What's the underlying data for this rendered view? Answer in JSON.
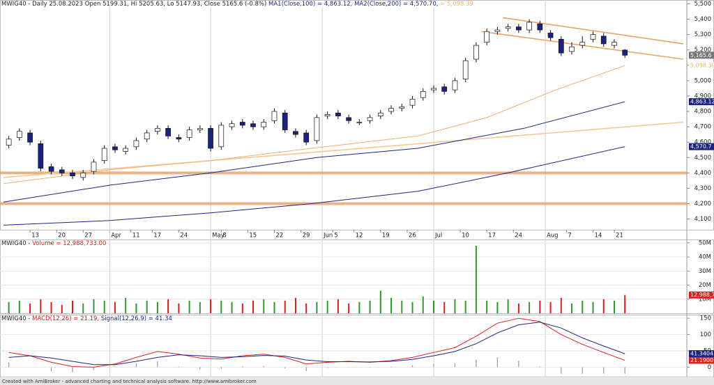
{
  "chart_data": [
    {
      "type": "candlestick",
      "title": "MWIG40 - Daily 25.08.2023 Open 5199.31, Hi 5205.63, Lo 5147.93, Close 5165.6 (-0.8%)",
      "x": [
        1,
        3,
        5,
        7,
        9,
        11,
        13,
        15,
        17,
        19,
        21,
        23,
        25,
        27,
        29,
        31,
        33,
        35,
        37,
        39,
        41,
        43,
        45,
        47,
        49,
        51,
        53,
        55,
        57,
        59,
        61,
        63,
        65,
        67,
        69,
        71,
        73,
        75,
        77,
        79,
        81,
        83,
        85,
        87,
        89,
        91,
        93,
        95,
        97,
        99,
        101,
        103,
        105,
        107,
        109,
        111,
        113,
        115,
        117
      ],
      "open": [
        4580,
        4630,
        4660,
        4590,
        4440,
        4420,
        4400,
        4370,
        4410,
        4480,
        4570,
        4540,
        4570,
        4620,
        4670,
        4690,
        4630,
        4630,
        4680,
        4690,
        4570,
        4700,
        4730,
        4720,
        4700,
        4740,
        4790,
        4670,
        4660,
        4610,
        4770,
        4790,
        4760,
        4730,
        4740,
        4770,
        4800,
        4820,
        4840,
        4890,
        4940,
        4960,
        4940,
        5010,
        5140,
        5250,
        5320,
        5340,
        5350,
        5330,
        5370,
        5310,
        5270,
        5190,
        5230,
        5270,
        5290,
        5230,
        5199.31
      ],
      "high": [
        4640,
        4690,
        4680,
        4610,
        4460,
        4440,
        4420,
        4420,
        4490,
        4580,
        4590,
        4580,
        4630,
        4680,
        4710,
        4710,
        4650,
        4700,
        4710,
        4710,
        4730,
        4740,
        4750,
        4740,
        4750,
        4820,
        4810,
        4690,
        4680,
        4780,
        4800,
        4810,
        4780,
        4750,
        4780,
        4810,
        4840,
        4850,
        4900,
        4950,
        4970,
        4980,
        5020,
        5150,
        5250,
        5340,
        5350,
        5370,
        5370,
        5400,
        5390,
        5330,
        5290,
        5250,
        5290,
        5320,
        5310,
        5270,
        5205.63
      ],
      "low": [
        4560,
        4610,
        4580,
        4410,
        4390,
        4380,
        4360,
        4350,
        4390,
        4460,
        4530,
        4520,
        4550,
        4600,
        4650,
        4620,
        4600,
        4610,
        4660,
        4540,
        4550,
        4680,
        4690,
        4680,
        4680,
        4720,
        4660,
        4630,
        4580,
        4590,
        4750,
        4750,
        4720,
        4710,
        4720,
        4750,
        4780,
        4800,
        4820,
        4870,
        4920,
        4910,
        4920,
        4990,
        5120,
        5230,
        5300,
        5320,
        5310,
        5310,
        5310,
        5260,
        5160,
        5170,
        5210,
        5250,
        5220,
        5210,
        5147.93
      ],
      "close": [
        4620,
        4670,
        4600,
        4430,
        4410,
        4400,
        4380,
        4400,
        4470,
        4560,
        4550,
        4560,
        4610,
        4660,
        4690,
        4640,
        4620,
        4680,
        4690,
        4560,
        4710,
        4720,
        4710,
        4700,
        4730,
        4800,
        4680,
        4650,
        4600,
        4760,
        4780,
        4770,
        4740,
        4730,
        4760,
        4790,
        4820,
        4830,
        4880,
        4930,
        4950,
        4930,
        5000,
        5130,
        5230,
        5320,
        5330,
        5350,
        5330,
        5380,
        5330,
        5280,
        5180,
        5220,
        5250,
        5300,
        5240,
        5250,
        5165.6
      ],
      "up_color": "#ffffff",
      "down_color": "#1a2380",
      "last_label": "5,165.6",
      "series": [
        {
          "name": "MA1(Close,100) = 4,863.12,",
          "color": "#1a2380",
          "x": [
            0,
            20,
            39,
            59,
            78,
            98,
            117
          ],
          "values": [
            4210,
            4320,
            4400,
            4500,
            4560,
            4690,
            4863.12
          ],
          "last_label": "4,863.12"
        },
        {
          "name": "MA2(Close,200) = 4,570.70,",
          "color": "#1a2380",
          "x": [
            0,
            20,
            39,
            58,
            78,
            95,
            117
          ],
          "values": [
            4060,
            4090,
            4140,
            4200,
            4280,
            4400,
            4570.7
          ],
          "last_label": "4,570.7"
        },
        {
          "name": "= 5,098.39",
          "color": "#f0b070",
          "x": [
            0,
            20,
            39,
            58,
            78,
            91,
            104,
            117
          ],
          "values": [
            4330,
            4420,
            4480,
            4560,
            4640,
            4760,
            4940,
            5098.39
          ],
          "last_label": "5,098.39"
        }
      ],
      "overlays": [
        {
          "color": "#f5c896",
          "x": [
            0,
            128
          ],
          "values": [
            4370,
            4730
          ]
        },
        {
          "color": "#e9a468",
          "x": [
            94,
            128
          ],
          "values": [
            5410,
            5240
          ]
        },
        {
          "color": "#e9a468",
          "x": [
            90,
            128
          ],
          "values": [
            5320,
            5140
          ]
        }
      ],
      "hlines": [
        4400,
        4200
      ],
      "hline_color": "#e09a60",
      "xlim": [
        0,
        128
      ],
      "xticks": [
        {
          "value": 5,
          "label": "13"
        },
        {
          "value": 10,
          "label": "20"
        },
        {
          "value": 15,
          "label": "27"
        },
        {
          "value": 20,
          "label": "Apr"
        },
        {
          "value": 24,
          "label": "11"
        },
        {
          "value": 28,
          "label": "17"
        },
        {
          "value": 33,
          "label": "24"
        },
        {
          "value": 39,
          "label": "May"
        },
        {
          "value": 41,
          "label": "8"
        },
        {
          "value": 46,
          "label": "15"
        },
        {
          "value": 51,
          "label": "22"
        },
        {
          "value": 56,
          "label": "29"
        },
        {
          "value": 60,
          "label": "Jun"
        },
        {
          "value": 62,
          "label": "5"
        },
        {
          "value": 66,
          "label": "12"
        },
        {
          "value": 71,
          "label": "19"
        },
        {
          "value": 76,
          "label": "26"
        },
        {
          "value": 81,
          "label": "Jul"
        },
        {
          "value": 86,
          "label": "10"
        },
        {
          "value": 91,
          "label": "17"
        },
        {
          "value": 96,
          "label": "24"
        },
        {
          "value": 102,
          "label": "Aug"
        },
        {
          "value": 106,
          "label": "7"
        },
        {
          "value": 111,
          "label": "14"
        },
        {
          "value": 115,
          "label": "21"
        }
      ],
      "ylim": [
        4030,
        5525
      ],
      "yticks": [
        {
          "value": 5500,
          "label": "5,500"
        },
        {
          "value": 5400,
          "label": "5,400"
        },
        {
          "value": 5300,
          "label": "5,300"
        },
        {
          "value": 5200,
          "label": "5,200"
        },
        {
          "value": 5100,
          "label": "5,100"
        },
        {
          "value": 5000,
          "label": "5,000"
        },
        {
          "value": 4900,
          "label": "4,900"
        },
        {
          "value": 4800,
          "label": "4,800"
        },
        {
          "value": 4700,
          "label": "4,700"
        },
        {
          "value": 4600,
          "label": "4,600"
        },
        {
          "value": 4500,
          "label": "4,500"
        },
        {
          "value": 4400,
          "label": "4,400"
        },
        {
          "value": 4300,
          "label": "4,300"
        },
        {
          "value": 4200,
          "label": "4,200"
        },
        {
          "value": 4100,
          "label": "4,100"
        }
      ]
    },
    {
      "type": "bar",
      "title": "MWIG40 -",
      "name": "Volume = 12,988,733.00",
      "name_color": "#d62020",
      "x": [
        1,
        3,
        5,
        7,
        9,
        11,
        13,
        15,
        17,
        19,
        21,
        23,
        25,
        27,
        29,
        31,
        33,
        35,
        37,
        39,
        41,
        43,
        45,
        47,
        49,
        51,
        53,
        55,
        57,
        59,
        61,
        63,
        65,
        67,
        69,
        71,
        73,
        75,
        77,
        79,
        81,
        83,
        85,
        87,
        89,
        91,
        93,
        95,
        97,
        99,
        101,
        103,
        105,
        107,
        109,
        111,
        113,
        115,
        117
      ],
      "values": [
        8000000,
        9000000,
        7000000,
        10000000,
        8000000,
        6000000,
        9000000,
        7000000,
        10000000,
        9000000,
        8000000,
        11000000,
        7000000,
        9000000,
        8000000,
        10000000,
        7000000,
        9000000,
        8000000,
        10000000,
        9000000,
        8000000,
        7000000,
        9000000,
        10000000,
        8000000,
        9000000,
        11000000,
        7000000,
        8000000,
        9000000,
        10000000,
        7000000,
        8000000,
        9000000,
        16000000,
        11000000,
        9000000,
        8000000,
        12000000,
        9000000,
        8000000,
        10000000,
        9000000,
        48000000,
        9000000,
        8000000,
        10000000,
        7000000,
        8000000,
        9000000,
        8000000,
        11000000,
        7000000,
        9000000,
        8000000,
        10000000,
        9000000,
        12988733
      ],
      "up_color": "#2e9a2e",
      "down_color": "#d62020",
      "last_label": "12,988,7",
      "ylim": [
        0,
        52400000
      ],
      "yticks": [
        {
          "value": 50000000,
          "label": "50M"
        },
        {
          "value": 40000000,
          "label": "40M"
        },
        {
          "value": 30000000,
          "label": "30M"
        },
        {
          "value": 20000000,
          "label": "20M"
        },
        {
          "value": 10000000,
          "label": "10M"
        }
      ]
    },
    {
      "type": "macd",
      "title": "MWIG40 -",
      "x": [
        1,
        5,
        9,
        13,
        17,
        21,
        25,
        29,
        33,
        37,
        41,
        45,
        49,
        53,
        57,
        61,
        65,
        69,
        73,
        77,
        81,
        85,
        89,
        93,
        97,
        101,
        105,
        109,
        113,
        117
      ],
      "series": [
        {
          "name": "MACD(12,26) = 21.19,",
          "color": "#d62020",
          "values": [
            45,
            35,
            15,
            2,
            0,
            10,
            30,
            48,
            40,
            28,
            25,
            35,
            40,
            30,
            10,
            15,
            18,
            15,
            20,
            30,
            45,
            60,
            95,
            135,
            150,
            140,
            100,
            70,
            45,
            21.19
          ],
          "last_label": "21.1900"
        },
        {
          "name": "Signal(12,26,9) = 41.34",
          "color": "#1a2380",
          "values": [
            30,
            35,
            28,
            18,
            8,
            8,
            18,
            30,
            38,
            35,
            30,
            32,
            36,
            34,
            22,
            17,
            17,
            16,
            18,
            24,
            35,
            48,
            72,
            105,
            130,
            138,
            120,
            90,
            65,
            41.34
          ],
          "last_label": "41.3404"
        }
      ],
      "histogram": {
        "color": "#9a9a9a",
        "values": [
          15,
          0,
          -13,
          -16,
          -8,
          2,
          12,
          18,
          2,
          -7,
          -5,
          3,
          4,
          -4,
          -12,
          -2,
          1,
          -1,
          2,
          6,
          10,
          12,
          23,
          30,
          20,
          2,
          -20,
          -20,
          -20,
          -20
        ]
      },
      "ylim": [
        -29,
        161
      ],
      "yticks": [
        0,
        50,
        100,
        150
      ]
    }
  ],
  "footer": "Created with AmiBroker - advanced charting and technical analysis software. http://www.amibroker.com"
}
